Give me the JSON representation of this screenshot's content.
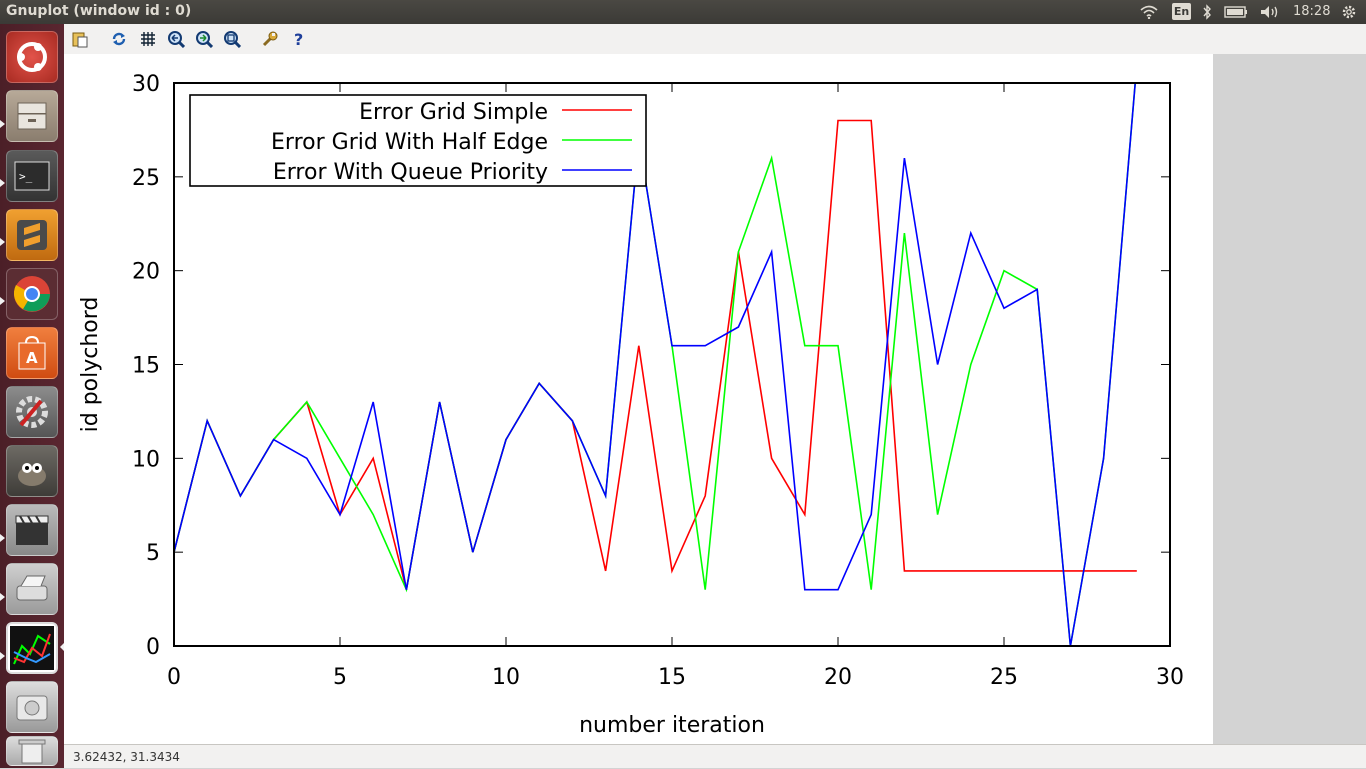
{
  "window": {
    "title": "Gnuplot (window id : 0)"
  },
  "panel": {
    "language": "En",
    "clock": "18:28"
  },
  "launcher": {
    "items": [
      "Ubuntu Dash",
      "Files",
      "Terminal",
      "Sublime Text",
      "Chromium",
      "Ubuntu Software Center",
      "System Settings",
      "GIMP",
      "Videos",
      "Scanner",
      "Gnuplot",
      "Disk"
    ]
  },
  "toolbar": {
    "buttons": [
      "copy-to-clipboard",
      "replot",
      "toggle-grid",
      "previous-zoom",
      "next-zoom",
      "autoscale",
      "options",
      "help"
    ]
  },
  "status": {
    "coordinates": "3.62432, 31.3434"
  },
  "colors": {
    "series1": "#ff0000",
    "series2": "#00ff00",
    "series3": "#0000ff",
    "panel": "#3c3b37",
    "launcher": "#5a2630"
  },
  "chart_data": {
    "type": "line",
    "title": "",
    "xlabel": "number iteration",
    "ylabel": "id polychord",
    "xlim": [
      0,
      30
    ],
    "ylim": [
      0,
      30
    ],
    "xticks": [
      "0",
      "5",
      "10",
      "15",
      "20",
      "25",
      "30"
    ],
    "yticks": [
      "0",
      "5",
      "10",
      "15",
      "20",
      "25",
      "30"
    ],
    "legend_position": "top-left",
    "series": [
      {
        "name": "Error Grid Simple",
        "color": "#ff0000",
        "x": [
          0,
          1,
          2,
          3,
          4,
          5,
          6,
          7,
          8,
          9,
          10,
          11,
          12,
          13,
          14,
          15,
          16,
          17,
          18,
          19,
          20,
          21,
          22,
          23,
          24,
          25,
          26,
          27,
          28,
          29
        ],
        "y": [
          5,
          12,
          8,
          11,
          13,
          7,
          10,
          3,
          13,
          5,
          11,
          14,
          12,
          4,
          16,
          4,
          8,
          21,
          10,
          7,
          28,
          28,
          4,
          4,
          4,
          4,
          4,
          4,
          4,
          4
        ]
      },
      {
        "name": "Error Grid With Half Edge",
        "color": "#00ff00",
        "x": [
          0,
          1,
          2,
          3,
          4,
          5,
          6,
          7,
          8,
          9,
          10,
          11,
          12,
          13,
          14,
          15,
          16,
          17,
          18,
          19,
          20,
          21,
          22,
          23,
          24,
          25,
          26,
          27,
          28,
          29
        ],
        "y": [
          5,
          12,
          8,
          11,
          13,
          10,
          7,
          3,
          13,
          5,
          11,
          14,
          12,
          8,
          27,
          16,
          3,
          21,
          26,
          16,
          16,
          3,
          22,
          7,
          15,
          20,
          19,
          0,
          10,
          31
        ]
      },
      {
        "name": "Error With Queue Priority",
        "color": "#0000ff",
        "x": [
          0,
          1,
          2,
          3,
          4,
          5,
          6,
          7,
          8,
          9,
          10,
          11,
          12,
          13,
          14,
          15,
          16,
          17,
          18,
          19,
          20,
          21,
          22,
          23,
          24,
          25,
          26,
          27,
          28,
          29
        ],
        "y": [
          5,
          12,
          8,
          11,
          10,
          7,
          13,
          3,
          13,
          5,
          11,
          14,
          12,
          8,
          27,
          16,
          16,
          17,
          21,
          3,
          3,
          7,
          26,
          15,
          22,
          18,
          19,
          0,
          10,
          31
        ]
      }
    ]
  }
}
